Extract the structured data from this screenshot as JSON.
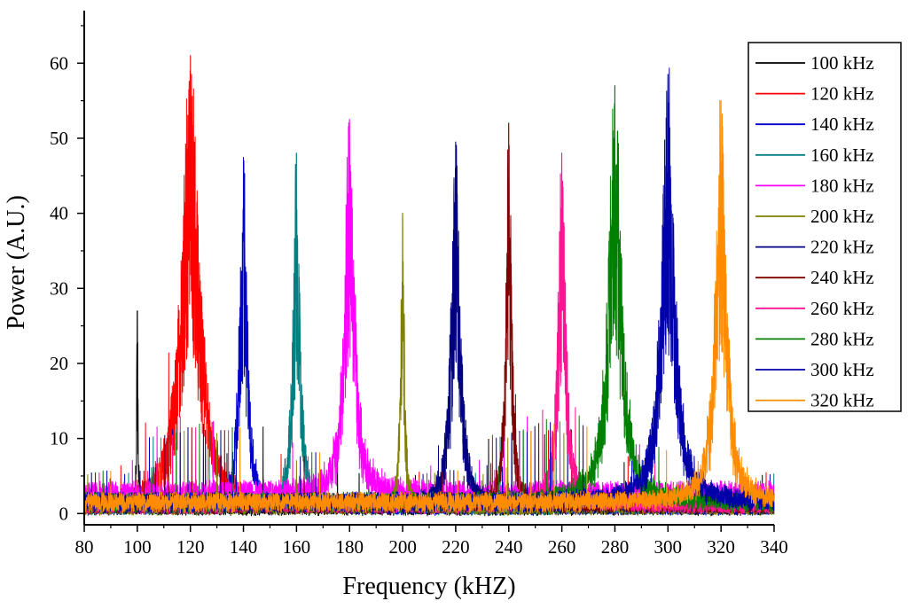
{
  "chart_data": {
    "type": "line",
    "title": "",
    "xlabel": "Frequency (kHZ)",
    "ylabel": "Power (A.U.)",
    "xlim": [
      80,
      340
    ],
    "ylim": [
      -1.5,
      67
    ],
    "x_ticks": [
      80,
      100,
      120,
      140,
      160,
      180,
      200,
      220,
      240,
      260,
      280,
      300,
      320,
      340
    ],
    "y_ticks": [
      0,
      10,
      20,
      30,
      40,
      50,
      60
    ],
    "legend_position": "top-right",
    "series": [
      {
        "name": "100 kHz",
        "color": "#000000",
        "center": 100,
        "peak": 27,
        "width": 0.35,
        "floor": 0.8
      },
      {
        "name": "120 kHz",
        "color": "#ff0000",
        "center": 120,
        "peak": 61,
        "width": 4.0,
        "floor": 1.5
      },
      {
        "name": "140 kHz",
        "color": "#0000cc",
        "center": 140,
        "peak": 47.5,
        "width": 1.8,
        "floor": 1.0
      },
      {
        "name": "160 kHz",
        "color": "#008080",
        "center": 160,
        "peak": 48,
        "width": 1.6,
        "floor": 1.2
      },
      {
        "name": "180 kHz",
        "color": "#ff00ff",
        "center": 180,
        "peak": 52.5,
        "width": 2.2,
        "floor": 3.0
      },
      {
        "name": "200 kHz",
        "color": "#808000",
        "center": 200,
        "peak": 40,
        "width": 0.9,
        "floor": 1.0
      },
      {
        "name": "220 kHz",
        "color": "#000080",
        "center": 220,
        "peak": 49.5,
        "width": 2.0,
        "floor": 1.5
      },
      {
        "name": "240 kHz",
        "color": "#800000",
        "center": 240,
        "peak": 52,
        "width": 1.3,
        "floor": 1.5
      },
      {
        "name": "260 kHz",
        "color": "#ff1493",
        "center": 260,
        "peak": 48,
        "width": 1.8,
        "floor": 1.5
      },
      {
        "name": "280 kHz",
        "color": "#008000",
        "center": 280,
        "peak": 57,
        "width": 3.0,
        "floor": 2.0
      },
      {
        "name": "300 kHz",
        "color": "#0000aa",
        "center": 300,
        "peak": 58.5,
        "width": 3.0,
        "floor": 2.0
      },
      {
        "name": "320 kHz",
        "color": "#ff8c00",
        "center": 320,
        "peak": 55,
        "width": 2.5,
        "floor": 2.0
      }
    ]
  }
}
